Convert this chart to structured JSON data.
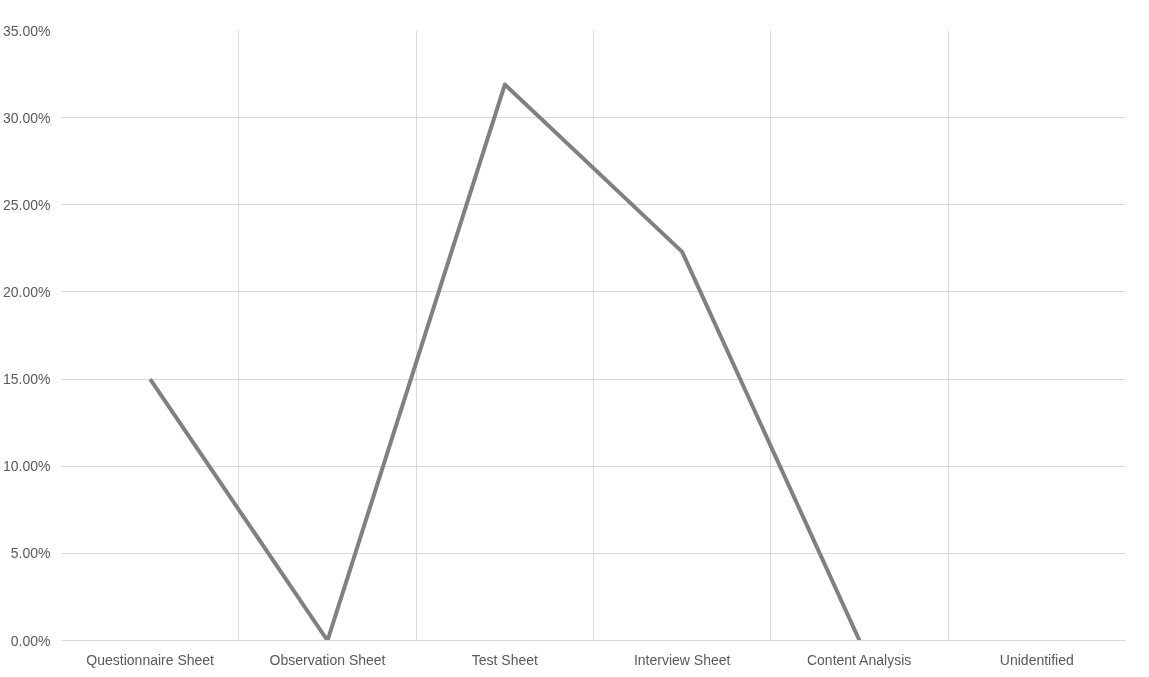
{
  "chart_data": {
    "type": "line",
    "categories": [
      "Questionnaire Sheet",
      "Observation Sheet",
      "Test Sheet",
      "Interview Sheet",
      "Content Analysis",
      "Unidentified"
    ],
    "series": [
      {
        "color": "#808080",
        "values": [
          15.0,
          0,
          31.9,
          22.3,
          0,
          null
        ]
      }
    ],
    "ylim": [
      0,
      35
    ],
    "yticks": [
      {
        "value": 0,
        "label": "0.00%"
      },
      {
        "value": 5,
        "label": "5.00%"
      },
      {
        "value": 10,
        "label": "10.00%"
      },
      {
        "value": 15,
        "label": "15.00%"
      },
      {
        "value": 20,
        "label": "20.00%"
      },
      {
        "value": 25,
        "label": "25.00%"
      },
      {
        "value": 30,
        "label": "30.00%"
      },
      {
        "value": 35,
        "label": "35.00%"
      }
    ],
    "grid": true,
    "marker": "none",
    "line_style": "solid"
  }
}
